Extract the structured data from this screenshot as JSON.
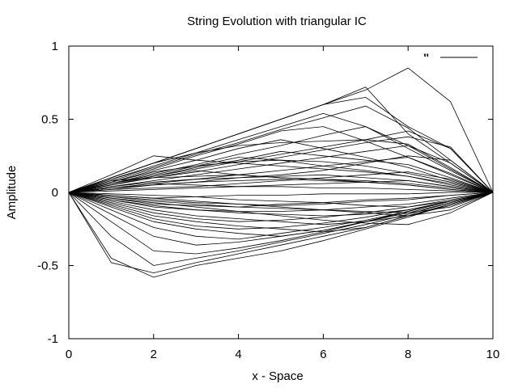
{
  "chart_data": {
    "type": "line",
    "title": "String Evolution with triangular IC",
    "xlabel": "x - Space",
    "ylabel": "Amplitude",
    "xlim": [
      0,
      10
    ],
    "ylim": [
      -1,
      1
    ],
    "xticks": [
      0,
      2,
      4,
      6,
      8,
      10
    ],
    "yticks": [
      -1,
      -0.5,
      0,
      0.5,
      1
    ],
    "xtick_labels": [
      "0",
      "2",
      "4",
      "6",
      "8",
      "10"
    ],
    "ytick_labels": [
      "-1",
      "-0.5",
      "0",
      "0.5",
      "1"
    ],
    "grid": false,
    "legend": {
      "position": "top-right",
      "label": "''"
    },
    "x": [
      0,
      1,
      2,
      3,
      4,
      5,
      6,
      7,
      8,
      9,
      10
    ],
    "series": [
      {
        "values": [
          0,
          0.1,
          0.2,
          0.3,
          0.4,
          0.5,
          0.6,
          0.7,
          0.85,
          0.62,
          0
        ]
      },
      {
        "values": [
          0,
          0.1,
          0.2,
          0.3,
          0.4,
          0.5,
          0.6,
          0.65,
          0.45,
          0.3,
          0
        ]
      },
      {
        "values": [
          0,
          0.09,
          0.18,
          0.27,
          0.36,
          0.45,
          0.54,
          0.45,
          0.32,
          0.16,
          0
        ]
      },
      {
        "values": [
          0,
          0.08,
          0.16,
          0.25,
          0.33,
          0.42,
          0.45,
          0.35,
          0.24,
          0.12,
          0
        ]
      },
      {
        "values": [
          0,
          0.07,
          0.15,
          0.22,
          0.3,
          0.36,
          0.3,
          0.24,
          0.17,
          0.08,
          0
        ]
      },
      {
        "values": [
          0,
          0.06,
          0.12,
          0.18,
          0.24,
          0.22,
          0.18,
          0.15,
          0.11,
          0.05,
          0
        ]
      },
      {
        "values": [
          0,
          0.05,
          0.1,
          0.15,
          0.12,
          0.1,
          0.09,
          0.07,
          0.05,
          0.02,
          0
        ]
      },
      {
        "values": [
          0,
          0.12,
          0.25,
          0.22,
          0.2,
          0.18,
          0.16,
          0.14,
          0.11,
          0.06,
          0
        ]
      },
      {
        "values": [
          0,
          0.03,
          0.06,
          0.09,
          0.12,
          0.15,
          0.18,
          0.21,
          0.24,
          0.13,
          0
        ]
      },
      {
        "values": [
          0,
          0.04,
          0.08,
          0.12,
          0.16,
          0.2,
          0.24,
          0.28,
          0.32,
          0.2,
          0
        ]
      },
      {
        "values": [
          0,
          0.02,
          0.05,
          0.07,
          0.1,
          0.12,
          0.15,
          0.2,
          0.25,
          0.22,
          0
        ]
      },
      {
        "values": [
          0,
          0.1,
          0.2,
          0.3,
          0.4,
          0.5,
          0.6,
          0.72,
          0.4,
          0.2,
          0
        ]
      },
      {
        "values": [
          0,
          0.09,
          0.17,
          0.26,
          0.34,
          0.43,
          0.51,
          0.59,
          0.44,
          0.22,
          0
        ]
      },
      {
        "values": [
          0,
          0.05,
          0.1,
          0.14,
          0.19,
          0.24,
          0.29,
          0.34,
          0.38,
          0.31,
          0
        ]
      },
      {
        "values": [
          0,
          0.06,
          0.11,
          0.17,
          0.22,
          0.28,
          0.25,
          0.22,
          0.19,
          0.1,
          0
        ]
      },
      {
        "values": [
          0,
          0.03,
          0.06,
          0.05,
          0.04,
          0.04,
          0.03,
          0.03,
          0.02,
          0.01,
          0
        ]
      },
      {
        "values": [
          0,
          0.01,
          0.02,
          0.03,
          0.04,
          0.05,
          0.06,
          0.07,
          0.08,
          0.04,
          0
        ]
      },
      {
        "values": [
          0,
          -0.02,
          -0.04,
          -0.03,
          -0.02,
          -0.02,
          -0.01,
          -0.01,
          -0.01,
          0.0,
          0
        ]
      },
      {
        "values": [
          0,
          -0.04,
          -0.08,
          -0.09,
          -0.1,
          -0.08,
          -0.07,
          -0.05,
          -0.04,
          -0.02,
          0
        ]
      },
      {
        "values": [
          0,
          -0.45,
          -0.58,
          -0.5,
          -0.45,
          -0.4,
          -0.33,
          -0.25,
          -0.17,
          -0.08,
          0
        ]
      },
      {
        "values": [
          0,
          -0.48,
          -0.55,
          -0.48,
          -0.42,
          -0.36,
          -0.3,
          -0.24,
          -0.16,
          -0.08,
          0
        ]
      },
      {
        "values": [
          0,
          -0.3,
          -0.5,
          -0.45,
          -0.4,
          -0.34,
          -0.28,
          -0.22,
          -0.15,
          -0.07,
          0
        ]
      },
      {
        "values": [
          0,
          -0.2,
          -0.4,
          -0.42,
          -0.38,
          -0.33,
          -0.27,
          -0.2,
          -0.13,
          -0.06,
          0
        ]
      },
      {
        "values": [
          0,
          -0.15,
          -0.3,
          -0.36,
          -0.34,
          -0.3,
          -0.26,
          -0.2,
          -0.13,
          -0.06,
          0
        ]
      },
      {
        "values": [
          0,
          -0.12,
          -0.24,
          -0.3,
          -0.32,
          -0.28,
          -0.24,
          -0.19,
          -0.13,
          -0.06,
          0
        ]
      },
      {
        "values": [
          0,
          -0.1,
          -0.2,
          -0.25,
          -0.28,
          -0.3,
          -0.26,
          -0.2,
          -0.14,
          -0.07,
          0
        ]
      },
      {
        "values": [
          0,
          -0.08,
          -0.16,
          -0.2,
          -0.23,
          -0.25,
          -0.27,
          -0.24,
          -0.16,
          -0.08,
          0
        ]
      },
      {
        "values": [
          0,
          -0.06,
          -0.12,
          -0.16,
          -0.18,
          -0.2,
          -0.22,
          -0.2,
          -0.16,
          -0.09,
          0
        ]
      },
      {
        "values": [
          0,
          -0.05,
          -0.09,
          -0.12,
          -0.14,
          -0.15,
          -0.16,
          -0.15,
          -0.12,
          -0.06,
          0
        ]
      },
      {
        "values": [
          0,
          -0.03,
          -0.06,
          -0.08,
          -0.1,
          -0.11,
          -0.12,
          -0.13,
          -0.14,
          -0.1,
          0
        ]
      },
      {
        "values": [
          0,
          -0.02,
          -0.04,
          -0.06,
          -0.08,
          -0.1,
          -0.12,
          -0.14,
          -0.16,
          -0.12,
          0
        ]
      },
      {
        "values": [
          0,
          -0.07,
          -0.14,
          -0.18,
          -0.2,
          -0.19,
          -0.17,
          -0.14,
          -0.1,
          -0.05,
          0
        ]
      },
      {
        "values": [
          0,
          -0.09,
          -0.18,
          -0.23,
          -0.25,
          -0.24,
          -0.21,
          -0.17,
          -0.12,
          -0.06,
          0
        ]
      },
      {
        "values": [
          0,
          0.08,
          0.1,
          0.11,
          0.12,
          0.1,
          0.09,
          0.08,
          0.06,
          0.03,
          0
        ]
      },
      {
        "values": [
          0,
          0.05,
          0.11,
          0.16,
          0.21,
          0.26,
          0.31,
          0.36,
          0.42,
          0.3,
          0
        ]
      },
      {
        "values": [
          0,
          0.1,
          0.2,
          0.27,
          0.32,
          0.34,
          0.35,
          0.36,
          0.33,
          0.17,
          0
        ]
      },
      {
        "values": [
          0,
          0.06,
          0.13,
          0.19,
          0.26,
          0.32,
          0.39,
          0.45,
          0.3,
          0.15,
          0
        ]
      },
      {
        "values": [
          0,
          0.02,
          0.03,
          0.04,
          0.06,
          0.08,
          0.1,
          0.12,
          0.14,
          0.09,
          0
        ]
      },
      {
        "values": [
          0,
          -0.01,
          -0.02,
          -0.03,
          -0.05,
          -0.06,
          -0.07,
          -0.09,
          -0.1,
          -0.06,
          0
        ]
      },
      {
        "values": [
          0,
          0.04,
          0.07,
          0.09,
          0.1,
          0.11,
          0.12,
          0.1,
          0.08,
          0.04,
          0
        ]
      },
      {
        "values": [
          0,
          -0.05,
          -0.1,
          -0.12,
          -0.13,
          -0.13,
          -0.12,
          -0.1,
          -0.08,
          -0.04,
          0
        ]
      },
      {
        "values": [
          0,
          0.03,
          0.05,
          0.07,
          0.08,
          0.09,
          0.08,
          0.07,
          0.05,
          0.02,
          0
        ]
      },
      {
        "values": [
          0,
          -0.03,
          -0.05,
          -0.07,
          -0.08,
          -0.09,
          -0.08,
          -0.06,
          -0.05,
          -0.02,
          0
        ]
      },
      {
        "values": [
          0,
          0.07,
          0.14,
          0.18,
          0.21,
          0.22,
          0.21,
          0.18,
          0.13,
          0.07,
          0
        ]
      },
      {
        "values": [
          0,
          -0.04,
          -0.07,
          -0.1,
          -0.13,
          -0.16,
          -0.19,
          -0.21,
          -0.22,
          -0.14,
          0
        ]
      }
    ]
  }
}
